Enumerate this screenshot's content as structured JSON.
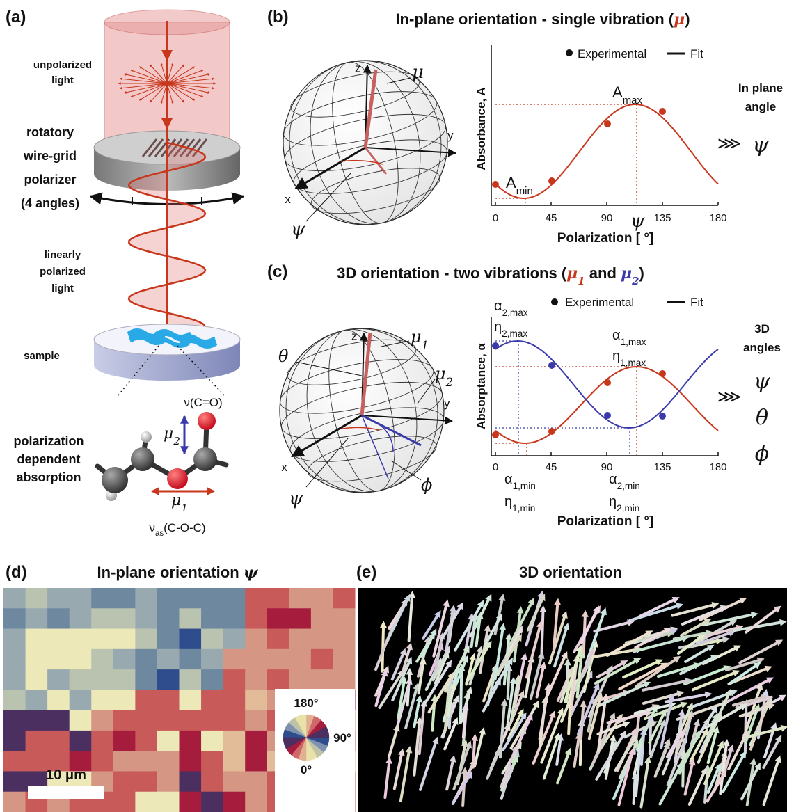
{
  "panel_a": {
    "label": "(a)",
    "unpolarized_light": [
      "unpolarized",
      "light"
    ],
    "polarizer": [
      "rotatory",
      "wire-grid",
      "polarizer",
      "(4 angles)"
    ],
    "linear_light": [
      "linearly",
      "polarized",
      "light"
    ],
    "sample": "sample",
    "absorption": [
      "polarization",
      "dependent",
      "absorption"
    ],
    "stretch_label": "ν(C=O)",
    "mu2": {
      "base": "μ",
      "sub": "2"
    },
    "mu1": {
      "base": "μ",
      "sub": "1"
    },
    "asym_label": {
      "base": "ν",
      "sub": "as",
      "rest": "(C-O-C)"
    }
  },
  "panel_b": {
    "label": "(b)",
    "title": {
      "text": "In-plane orientation - single vibration (",
      "symbol": "μ",
      "close": ")"
    },
    "sphere": {
      "z": "z",
      "y": "y",
      "x": "x",
      "vector": "μ",
      "angle": "ψ"
    },
    "plot": {
      "legend": [
        "Experimental",
        "Fit"
      ],
      "y_label": "Absorbance, A",
      "x_label": "Polarization [ °]",
      "xticks": [
        0,
        45,
        90,
        135,
        180
      ],
      "max": {
        "base": "A",
        "sub": "max"
      },
      "min": {
        "base": "A",
        "sub": "min"
      },
      "angle": "ψ"
    },
    "result": {
      "title": [
        "In plane",
        "angle"
      ],
      "arrow": "⋙",
      "angles": [
        "ψ"
      ]
    }
  },
  "panel_c": {
    "label": "(c)",
    "title": {
      "text": "3D orientation - two vibrations (",
      "symbol1": {
        "base": "μ",
        "sub": "1"
      },
      "and": " and ",
      "symbol2": {
        "base": "μ",
        "sub": "2"
      },
      "close": ")"
    },
    "sphere": {
      "z": "z",
      "y": "y",
      "x": "x",
      "vector1": {
        "base": "μ",
        "sub": "1"
      },
      "vector2": {
        "base": "μ",
        "sub": "2"
      },
      "polar": "θ",
      "azimuth": "ϕ",
      "angle": "ψ"
    },
    "plot": {
      "legend": [
        "Experimental",
        "Fit"
      ],
      "y_label": "Absorptance, α",
      "x_label": "Polarization [ °]",
      "xticks": [
        0,
        45,
        90,
        135,
        180
      ],
      "alpha2_max": {
        "base": "α",
        "sub": "2,max"
      },
      "eta2_max": {
        "base": "η",
        "sub": "2,max"
      },
      "alpha1_max": {
        "base": "α",
        "sub": "1,max"
      },
      "eta1_max": {
        "base": "η",
        "sub": "1,max"
      },
      "alpha1_min": {
        "base": "α",
        "sub": "1,min"
      },
      "eta1_min": {
        "base": "η",
        "sub": "1,min"
      },
      "alpha2_min": {
        "base": "α",
        "sub": "2,min"
      },
      "eta2_min": {
        "base": "η",
        "sub": "2,min"
      }
    },
    "result": {
      "title": [
        "3D",
        "angles"
      ],
      "arrow": "⋙",
      "angles": [
        "ψ",
        "θ",
        "ϕ"
      ]
    }
  },
  "panel_d": {
    "label": "(d)",
    "title": "In-plane orientation ",
    "symbol": "ψ",
    "scale_bar": "10 μm",
    "wheel": [
      "180°",
      "90°",
      "0°"
    ]
  },
  "panel_e": {
    "label": "(e)",
    "title": "3D orientation"
  }
}
